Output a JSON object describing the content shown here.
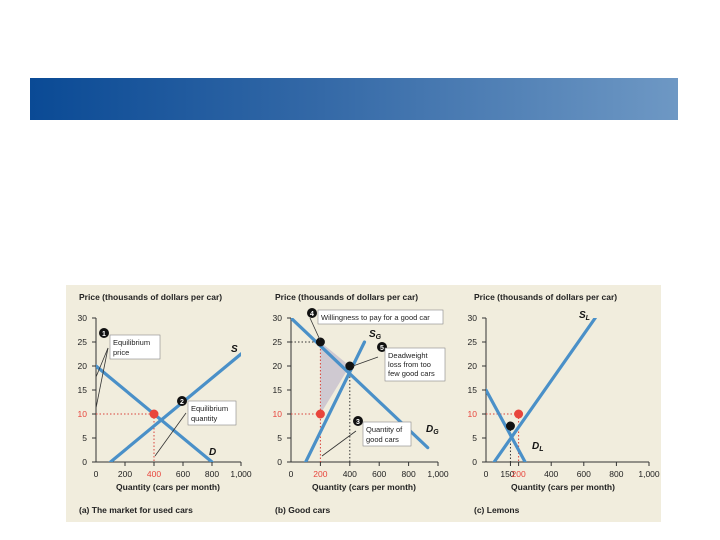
{
  "slide": {
    "banner_color_start": "#0a4a95",
    "banner_color_end": "#6e98c4"
  },
  "colors": {
    "line": "#4a90c8",
    "red": "#e8453c",
    "black": "#111111",
    "dotted_red": "#d9433b",
    "shade": "#c9c2cf"
  },
  "chart_data": [
    {
      "type": "line",
      "ylabel": "Price (thousands of dollars per car)",
      "xlabel": "Quantity (cars per month)",
      "caption_bold": "(a) The market for used cars",
      "xlim": [
        0,
        1000
      ],
      "ylim": [
        0,
        30
      ],
      "xticks": [
        "0",
        "200",
        "400",
        "600",
        "800",
        "1,000"
      ],
      "xtick_values": [
        0,
        200,
        400,
        600,
        800,
        1000
      ],
      "yticks": [
        "0",
        "5",
        "10",
        "15",
        "20",
        "25",
        "30"
      ],
      "ytick_values": [
        0,
        5,
        10,
        15,
        20,
        25,
        30
      ],
      "highlight_x": "400",
      "highlight_y": "10",
      "series": [
        {
          "name": "S",
          "x": [
            100,
            1000
          ],
          "y": [
            0,
            22.5
          ]
        },
        {
          "name": "D",
          "x": [
            0,
            800
          ],
          "y": [
            20,
            0
          ]
        }
      ],
      "equilibrium": {
        "x": 400,
        "y": 10
      },
      "annotations": [
        {
          "num": "1",
          "lines": [
            "Equilibrium",
            "price"
          ]
        },
        {
          "num": "2",
          "lines": [
            "Equilibrium",
            "quantity"
          ]
        }
      ]
    },
    {
      "type": "line",
      "ylabel": "Price (thousands of dollars per car)",
      "xlabel": "Quantity (cars per month)",
      "caption_bold": "(b) Good cars",
      "xlim": [
        0,
        1000
      ],
      "ylim": [
        0,
        30
      ],
      "xticks": [
        "0",
        "200",
        "400",
        "600",
        "800",
        "1,000"
      ],
      "xtick_values": [
        0,
        200,
        400,
        600,
        800,
        1000
      ],
      "yticks": [
        "0",
        "5",
        "10",
        "15",
        "20",
        "25",
        "30"
      ],
      "ytick_values": [
        0,
        5,
        10,
        15,
        20,
        25,
        30
      ],
      "highlight_x": "200",
      "highlight_y": "10",
      "series": [
        {
          "name": "S",
          "sub": "G",
          "x": [
            100,
            500
          ],
          "y": [
            0,
            25
          ]
        },
        {
          "name": "D",
          "sub": "G",
          "x": [
            0,
            930
          ],
          "y": [
            30,
            3
          ]
        }
      ],
      "points": [
        {
          "x": 200,
          "y": 10,
          "color": "red"
        },
        {
          "x": 200,
          "y": 25,
          "color": "black"
        },
        {
          "x": 400,
          "y": 20,
          "color": "black"
        }
      ],
      "annotations": [
        {
          "num": "4",
          "lines": [
            "Willingness to pay for a good car"
          ]
        },
        {
          "num": "5",
          "lines": [
            "Deadweight",
            "loss from too",
            "few good cars"
          ]
        },
        {
          "num": "3",
          "lines": [
            "Quantity of",
            "good cars"
          ]
        }
      ]
    },
    {
      "type": "line",
      "ylabel": "Price (thousands of dollars per car)",
      "xlabel": "Quantity (cars per month)",
      "caption_bold": "(c) Lemons",
      "xlim": [
        0,
        1000
      ],
      "ylim": [
        0,
        30
      ],
      "xticks": [
        "0",
        "150",
        "200",
        "400",
        "600",
        "800",
        "1,000"
      ],
      "xtick_values": [
        0,
        150,
        200,
        400,
        600,
        800,
        1000
      ],
      "yticks": [
        "0",
        "5",
        "10",
        "15",
        "20",
        "25",
        "30"
      ],
      "ytick_values": [
        0,
        5,
        10,
        15,
        20,
        25,
        30
      ],
      "highlight_x": "200",
      "highlight_y": "10",
      "series": [
        {
          "name": "S",
          "sub": "L",
          "x": [
            50,
            670
          ],
          "y": [
            0,
            30
          ]
        },
        {
          "name": "D",
          "sub": "L",
          "x": [
            0,
            240
          ],
          "y": [
            15,
            0
          ]
        }
      ],
      "points": [
        {
          "x": 200,
          "y": 10,
          "color": "red"
        },
        {
          "x": 150,
          "y": 7.5,
          "color": "black"
        }
      ]
    }
  ]
}
